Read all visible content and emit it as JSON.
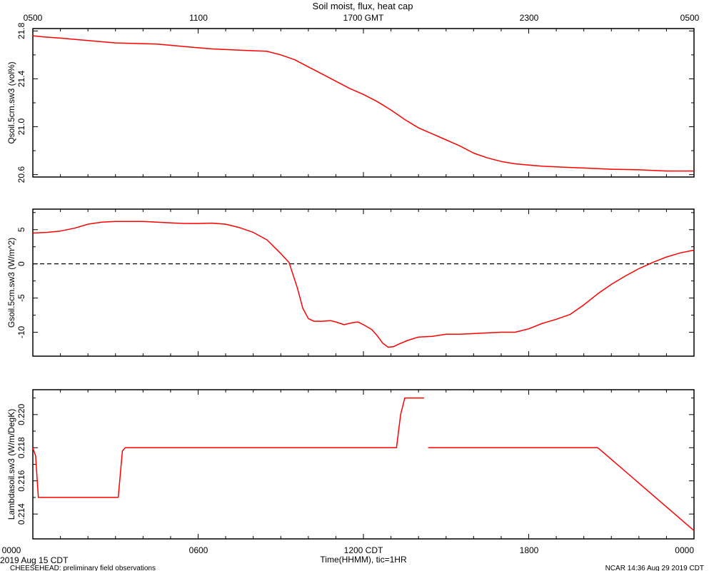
{
  "figure": {
    "title": "Soil moist, flux, heat cap",
    "top_axis_ticks": [
      "0500",
      "1100",
      "1700 GMT",
      "2300",
      "0500"
    ],
    "bottom_axis_ticks": [
      "0000",
      "0600",
      "1200 CDT",
      "1800",
      "0000"
    ],
    "x_title": "Time(HHMM), tic=1HR",
    "date_label": "2019 Aug 15 CDT",
    "footer_left": "CHEESEHEAD: preliminary field observations",
    "footer_right": "NCAR 14:36 Aug 29 2019 CDT",
    "line_color": "#ff0000",
    "zero_line_color": "#000000"
  },
  "chart_data": [
    {
      "type": "line",
      "ylabel": "Qsoil.5cm.sw3 (vol%)",
      "ylim": [
        20.58,
        21.82
      ],
      "yticks": [
        20.6,
        21.0,
        21.4,
        21.8
      ],
      "ytick_labels": [
        "20.6",
        "21.0",
        "21.4",
        "21.8"
      ],
      "xlim": [
        0,
        24
      ],
      "series": [
        {
          "x": [
            0,
            0.4,
            1,
            1.5,
            2,
            3,
            4.5,
            5.5,
            6.5,
            7.5,
            8.5,
            9,
            9.5,
            10,
            10.5,
            11,
            11.5,
            12,
            12.5,
            13,
            13.5,
            14,
            14.5,
            15,
            15.5,
            16,
            16.5,
            17,
            17.5,
            18,
            18.5,
            19,
            19.5,
            20,
            20.5,
            21,
            22,
            23,
            24
          ],
          "y": [
            21.76,
            21.75,
            21.74,
            21.73,
            21.72,
            21.7,
            21.69,
            21.67,
            21.65,
            21.64,
            21.63,
            21.6,
            21.56,
            21.5,
            21.44,
            21.38,
            21.32,
            21.27,
            21.21,
            21.14,
            21.06,
            20.99,
            20.94,
            20.89,
            20.84,
            20.78,
            20.74,
            20.71,
            20.69,
            20.68,
            20.67,
            20.665,
            20.66,
            20.655,
            20.65,
            20.645,
            20.64,
            20.63,
            20.63
          ]
        }
      ]
    },
    {
      "type": "line",
      "ylabel": "Gsoil.5cm.sw3 (W/m^2)",
      "ylim": [
        -13.5,
        8.0
      ],
      "yticks": [
        -10,
        -5,
        0,
        5
      ],
      "ytick_labels": [
        "-10",
        "-5",
        "0",
        "5"
      ],
      "xlim": [
        0,
        24
      ],
      "zero_line": 0,
      "series": [
        {
          "x": [
            0,
            0.5,
            1,
            1.5,
            2,
            2.5,
            3,
            3.5,
            4,
            4.5,
            5,
            5.5,
            6,
            6.5,
            7,
            7.5,
            8,
            8.5,
            9,
            9.3,
            9.6,
            9.8,
            10,
            10.2,
            10.5,
            10.8,
            11,
            11.3,
            11.6,
            11.8,
            12,
            12.3,
            12.5,
            12.7,
            12.9,
            13.1,
            13.3,
            13.6,
            14,
            14.5,
            15,
            15.5,
            16,
            16.5,
            17,
            17.5,
            18,
            18.5,
            19,
            19.5,
            20,
            20.5,
            21,
            21.5,
            22,
            22.5,
            23,
            23.5,
            24
          ],
          "y": [
            4.5,
            4.6,
            4.8,
            5.2,
            5.8,
            6.1,
            6.2,
            6.2,
            6.2,
            6.1,
            6.0,
            5.9,
            5.9,
            5.95,
            5.8,
            5.3,
            4.6,
            3.5,
            1.5,
            0.2,
            -3.5,
            -6.5,
            -8.0,
            -8.4,
            -8.4,
            -8.3,
            -8.5,
            -8.9,
            -8.6,
            -8.5,
            -8.9,
            -9.6,
            -10.5,
            -11.6,
            -12.2,
            -12.1,
            -11.7,
            -11.2,
            -10.7,
            -10.6,
            -10.3,
            -10.3,
            -10.2,
            -10.1,
            -10.0,
            -10.0,
            -9.5,
            -8.7,
            -8.1,
            -7.4,
            -6.0,
            -4.4,
            -3.0,
            -1.8,
            -0.7,
            0.2,
            1.0,
            1.6,
            2.0
          ]
        }
      ]
    },
    {
      "type": "line",
      "ylabel": "Lambdasoil.sw3 (W/m/DegK)",
      "ylim": [
        0.2125,
        0.2215
      ],
      "yticks": [
        0.214,
        0.216,
        0.218,
        0.22
      ],
      "ytick_labels": [
        "0.214",
        "0.216",
        "0.218",
        "0.220"
      ],
      "xlim": [
        0,
        24
      ],
      "series": [
        {
          "x": [
            0,
            0.1,
            0.2,
            3.1,
            3.25,
            3.35,
            13.2,
            13.35,
            13.5,
            14.2
          ],
          "y": [
            0.218,
            0.2175,
            0.215,
            0.215,
            0.2178,
            0.218,
            0.218,
            0.22,
            0.221,
            0.221
          ]
        },
        {
          "x": [
            14.35,
            20.5,
            20.65,
            24
          ],
          "y": [
            0.218,
            0.218,
            0.2178,
            0.213
          ]
        }
      ]
    }
  ]
}
